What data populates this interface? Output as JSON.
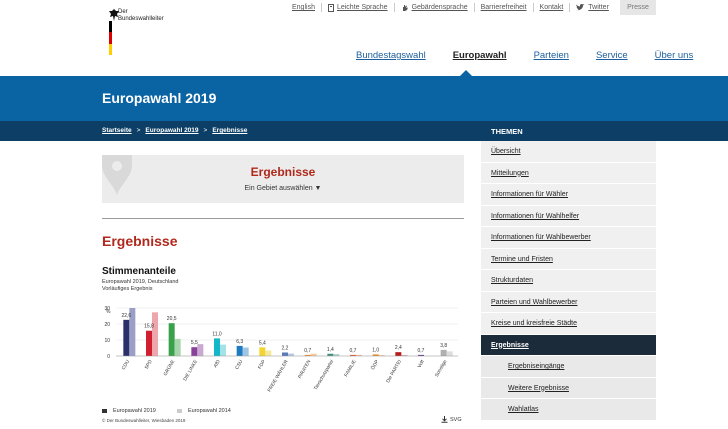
{
  "header": {
    "logo_line1": "Der",
    "logo_line2": "Bundeswahlleiter",
    "top_links": [
      "English",
      "Leichte Sprache",
      "Gebärdensprache",
      "Barrierefreiheit",
      "Kontakt",
      "Twitter"
    ],
    "presse": "Presse",
    "main_nav": [
      "Bundestagswahl",
      "Europawahl",
      "Parteien",
      "Service",
      "Über uns"
    ],
    "main_nav_active": "Europawahl"
  },
  "banner": {
    "title": "Europawahl 2019"
  },
  "breadcrumb": [
    "Startseite",
    "Europawahl 2019",
    "Ergebnisse"
  ],
  "selector": {
    "title": "Ergebnisse",
    "subtitle": "Ein Gebiet auswählen ▼"
  },
  "main": {
    "heading": "Ergebnisse"
  },
  "chart_meta": {
    "title": "Stimmenanteile",
    "subtitle1": "Europawahl 2019, Deutschland",
    "subtitle2": "Vorläufiges Ergebnis",
    "legend": [
      "Europawahl 2019",
      "Europawahl 2014"
    ],
    "copyright": "© Der Bundeswahlleiter, Wiesbaden 2019",
    "download": "SVG"
  },
  "chart_data": {
    "type": "bar",
    "title": "Stimmenanteile",
    "ylabel": "%",
    "ylim": [
      0,
      30
    ],
    "yticks": [
      0,
      10,
      20,
      30
    ],
    "categories": [
      "CDU",
      "SPD",
      "GRÜNE",
      "DIE LINKE",
      "AfD",
      "CSU",
      "FDP",
      "FREIE WÄHLER",
      "PIRATEN",
      "Tierschutzpartei",
      "FAMILIE",
      "ÖDP",
      "Die PARTEI",
      "Volt",
      "Sonstige"
    ],
    "series": [
      {
        "name": "Europawahl 2019",
        "values": [
          22.6,
          15.8,
          20.5,
          5.5,
          11.0,
          6.3,
          5.4,
          2.2,
          0.7,
          1.4,
          0.7,
          1.0,
          2.4,
          0.7,
          3.8
        ]
      },
      {
        "name": "Europawahl 2014",
        "values": [
          30.0,
          27.3,
          10.7,
          7.4,
          7.1,
          5.3,
          3.4,
          1.5,
          1.4,
          1.2,
          0.7,
          0.6,
          0.6,
          0,
          2.9
        ]
      }
    ],
    "labels": [
      "22,6",
      "15,8",
      "20,5",
      "5,5",
      "11,0",
      "6,3",
      "5,4",
      "2,2",
      "0,7",
      "1,4",
      "0,7",
      "1,0",
      "2,4",
      "0,7",
      "3,8"
    ],
    "colors_2019": [
      "#2b2f6b",
      "#d21f2f",
      "#3aa14b",
      "#8a3f9b",
      "#13b8c8",
      "#1d7cc0",
      "#f3d532",
      "#5a79b9",
      "#f28a26",
      "#3f8f7f",
      "#e05a2a",
      "#e8891f",
      "#b71c1c",
      "#6b3d93",
      "#b0b0b0"
    ],
    "colors_2014": [
      "#9b9fc8",
      "#eea6ad",
      "#a7d6ad",
      "#c9a8d1",
      "#a2e2e8",
      "#9ec6e4",
      "#f8e99a",
      "#b8c6e2",
      "#f8c79a",
      "#aed1c9",
      "#f0b8a0",
      "#f3c89a",
      "#e2a1a1",
      "#c9b7dc",
      "#dcdcdc"
    ]
  },
  "sidebar": {
    "heading": "THEMEN",
    "items": [
      "Übersicht",
      "Mitteilungen",
      "Informationen für Wähler",
      "Informationen für Wahlhelfer",
      "Informationen für Wahlbewerber",
      "Termine und Fristen",
      "Strukturdaten",
      "Parteien und Wahlbewerber",
      "Kreise und kreisfreie Städte",
      "Ergebnisse"
    ],
    "active": "Ergebnisse",
    "subitems": [
      "Ergebniseingänge",
      "Weitere Ergebnisse",
      "Wahlatlas"
    ]
  },
  "colors": {
    "brand_blue": "#0a64a4",
    "dark_blue": "#0d3f66",
    "accent_red": "#b0291c"
  }
}
